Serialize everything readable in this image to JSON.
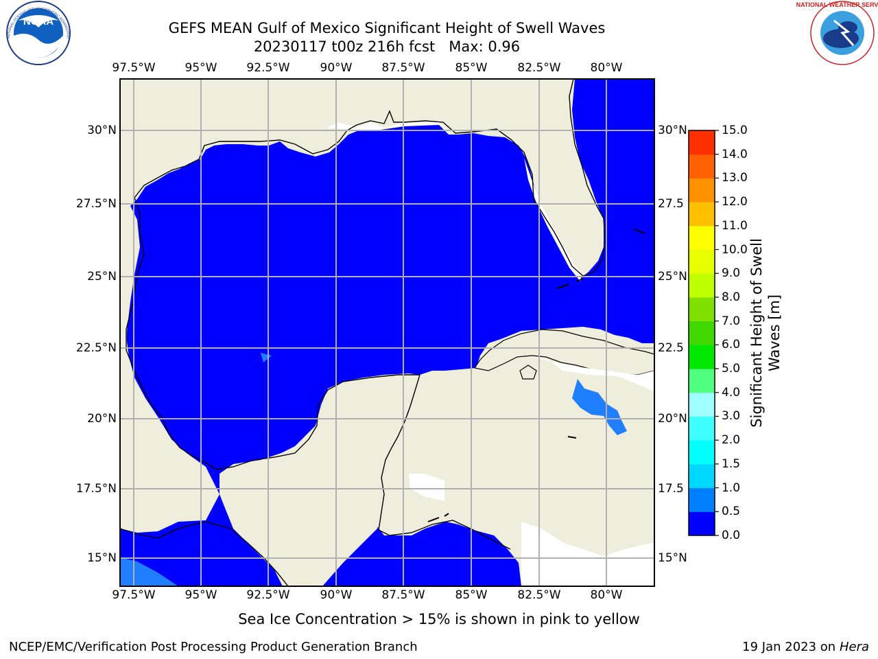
{
  "title": {
    "line1": "GEFS MEAN Gulf of Mexico Significant Height of Swell Waves",
    "line2": "20230117 t00z 216h fcst   Max: 0.96"
  },
  "map": {
    "lon_labels": [
      "97.5°W",
      "95°W",
      "92.5°W",
      "90°W",
      "87.5°W",
      "85°W",
      "82.5°W",
      "80°W"
    ],
    "lat_labels": [
      "30°N",
      "27.5°N",
      "25°N",
      "22.5°N",
      "20°N",
      "17.5°N",
      "15°N"
    ],
    "right_lat_labels": [
      "30°N",
      "27.5",
      "25°N",
      "22.5",
      "20°N",
      "17.5",
      "15°N"
    ],
    "colors": {
      "ocean": "#0000ff",
      "land": "#efeedc",
      "swell_05": "#1f7fff",
      "coast": "#000000",
      "grid": "#b0b0b0"
    }
  },
  "colorbar": {
    "ticks": [
      "15.0",
      "14.0",
      "13.0",
      "12.0",
      "11.0",
      "10.0",
      "9.0",
      "8.0",
      "7.0",
      "6.0",
      "5.0",
      "4.0",
      "3.0",
      "2.0",
      "1.5",
      "1.0",
      "0.5",
      "0.0"
    ],
    "colors": [
      "#0000ff",
      "#0080ff",
      "#00d8ff",
      "#00ffff",
      "#40ffff",
      "#a0ffff",
      "#50ff80",
      "#00e800",
      "#40d800",
      "#80e000",
      "#c0ff00",
      "#e8ff00",
      "#ffff00",
      "#ffc000",
      "#ff9000",
      "#ff6000",
      "#ff3000"
    ],
    "label_line1": "Significant Height of Swell",
    "label_line2": "Waves [m]"
  },
  "logos": {
    "noaa": "NOAA",
    "nws_text": "NATIONAL WEATHER SERVICE",
    "noaa_ring": "NATIONAL OCEANIC AND ATMOSPHERIC ADMINISTRATION · U.S. DEPARTMENT OF COMMERCE"
  },
  "note": "Sea Ice Concentration > 15% is shown in pink to yellow",
  "footer": {
    "left": "NCEP/EMC/Verification Post Processing Product Generation Branch",
    "right_prefix": "19 Jan 2023 on ",
    "right_machine": "Hera"
  }
}
